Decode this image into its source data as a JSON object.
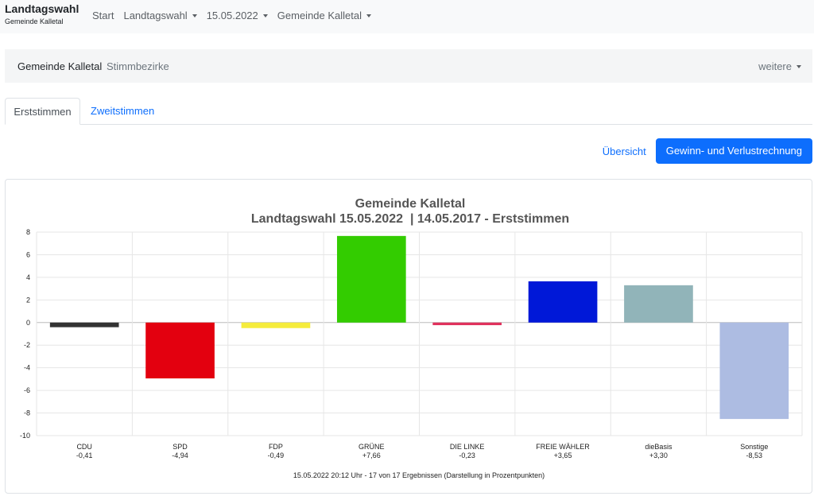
{
  "brand": {
    "title": "Landtagswahl",
    "subtitle": "Gemeinde Kalletal"
  },
  "nav": {
    "items": [
      "Start",
      "Landtagswahl",
      "15.05.2022",
      "Gemeinde Kalletal"
    ]
  },
  "subnav": {
    "active": "Gemeinde Kalletal",
    "link": "Stimmbezirke",
    "more": "weitere"
  },
  "tabs": {
    "active": "Erststimmen",
    "inactive": "Zweitstimmen"
  },
  "actions": {
    "overview": "Übersicht",
    "gain_loss": "Gewinn- und Verlustrechnung"
  },
  "chart_data": {
    "type": "bar",
    "title": "Gemeinde Kalletal",
    "subtitle": "Landtagswahl 15.05.2022  | 14.05.2017 - Erststimmen",
    "footer": "15.05.2022 20:12 Uhr - 17 von 17 Ergebnissen (Darstellung in Prozentpunkten)",
    "ylim": [
      -10,
      8
    ],
    "yticks": [
      8,
      6,
      4,
      2,
      0,
      -2,
      -4,
      -6,
      -8,
      -10
    ],
    "grid": true,
    "categories": [
      "CDU",
      "SPD",
      "FDP",
      "GRÜNE",
      "DIE LINKE",
      "FREIE WÄHLER",
      "dieBasis",
      "Sonstige"
    ],
    "values": [
      -0.41,
      -4.94,
      -0.49,
      7.66,
      -0.23,
      3.65,
      3.3,
      -8.53
    ],
    "value_labels": [
      "-0,41",
      "-4,94",
      "-0,49",
      "+7,66",
      "-0,23",
      "+3,65",
      "+3,30",
      "-8,53"
    ],
    "colors": [
      "#333333",
      "#e3000f",
      "#f5ec3c",
      "#33cc00",
      "#e0325d",
      "#0018d8",
      "#91b4b9",
      "#adbce2"
    ]
  }
}
